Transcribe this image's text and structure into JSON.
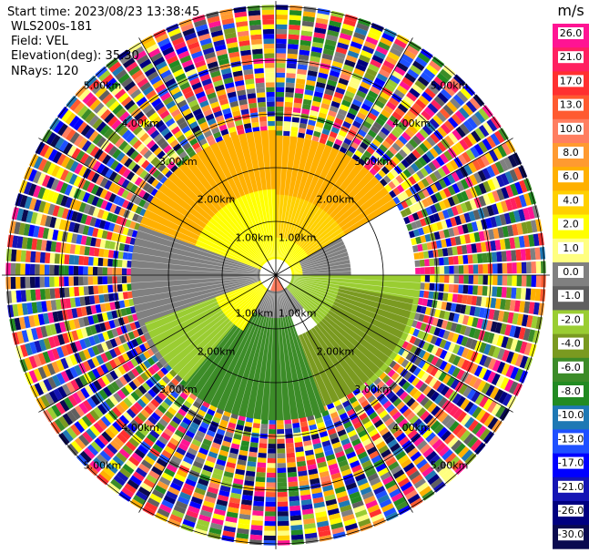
{
  "info": {
    "start_time": "Start time: 2023/08/23 13:38:45",
    "station": "WLS200s-181",
    "field": "Field: VEL",
    "elevation": "Elevation(deg): 35.30",
    "nrays": "NRays: 120"
  },
  "chart_data": {
    "type": "heatmap",
    "projection": "polar-ppi",
    "field": "VEL",
    "unit": "m/s",
    "range_ring_labels": [
      "1.00km",
      "2.00km",
      "3.00km",
      "4.00km",
      "5.00km"
    ],
    "range_rings_km": [
      1,
      2,
      3,
      4,
      5
    ],
    "max_range_km": 5.1,
    "clean_data_range_km": 2.7,
    "noise_beyond": true,
    "spokes_deg": [
      0,
      30,
      60,
      90,
      120,
      150,
      180,
      210,
      240,
      270,
      300,
      330
    ],
    "colorbar": {
      "ticks": [
        "26.0",
        "21.0",
        "17.0",
        "13.0",
        "10.0",
        "8.0",
        "6.0",
        "4.0",
        "2.0",
        "1.0",
        "0.0",
        "-1.0",
        "-2.0",
        "-4.0",
        "-6.0",
        "-8.0",
        "-10.0",
        "-13.0",
        "-17.0",
        "-21.0",
        "-26.0",
        "-30.0"
      ],
      "colors": [
        "#ff1493",
        "#ff2060",
        "#ff3030",
        "#ff5a30",
        "#ff7e60",
        "#ff9a30",
        "#ffb000",
        "#ffd000",
        "#ffff00",
        "#ffff80",
        "#808080",
        "#606060",
        "#9acd32",
        "#7a9a20",
        "#3c8c28",
        "#228b22",
        "#1e78b4",
        "#1e50ff",
        "#0000ff",
        "#1414b4",
        "#000080",
        "#0a0a50"
      ]
    },
    "sectors": [
      {
        "az_from": 290,
        "az_to": 360,
        "r_from": 0.5,
        "r_to": 2.7,
        "color": "#ffb000"
      },
      {
        "az_from": 0,
        "az_to": 60,
        "r_from": 0.5,
        "r_to": 2.6,
        "color": "#ffb000"
      },
      {
        "az_from": 0,
        "az_to": 60,
        "r_from": 0.5,
        "r_to": 1.5,
        "color": "#ffd000"
      },
      {
        "az_from": 260,
        "az_to": 360,
        "r_from": 0.3,
        "r_to": 1.6,
        "color": "#ffff00"
      },
      {
        "az_from": 0,
        "az_to": 90,
        "r_from": 0.3,
        "r_to": 0.7,
        "color": "#ffff00"
      },
      {
        "az_from": 60,
        "az_to": 100,
        "r_from": 0.5,
        "r_to": 1.4,
        "color": "#808080"
      },
      {
        "az_from": 230,
        "az_to": 290,
        "r_from": 0.3,
        "r_to": 2.7,
        "color": "#808080"
      },
      {
        "az_from": 90,
        "az_to": 140,
        "r_from": 0.3,
        "r_to": 2.7,
        "color": "#9acd32"
      },
      {
        "az_from": 100,
        "az_to": 160,
        "r_from": 1.2,
        "r_to": 2.6,
        "color": "#7a9a20"
      },
      {
        "az_from": 200,
        "az_to": 250,
        "r_from": 0.5,
        "r_to": 2.6,
        "color": "#9acd32"
      },
      {
        "az_from": 160,
        "az_to": 220,
        "r_from": 0.6,
        "r_to": 2.7,
        "color": "#3c8c28"
      },
      {
        "az_from": 140,
        "az_to": 230,
        "r_from": 0.3,
        "r_to": 0.8,
        "color": "#808080"
      },
      {
        "az_from": 210,
        "az_to": 250,
        "r_from": 0.3,
        "r_to": 1.2,
        "color": "#ffff00"
      },
      {
        "az_from": 150,
        "az_to": 200,
        "r_from": 0.0,
        "r_to": 0.3,
        "color": "#ff7e60"
      },
      {
        "az_from": 0,
        "az_to": 360,
        "r_from": 0.0,
        "r_to": 0.15,
        "color": "#3c8c28"
      }
    ]
  }
}
